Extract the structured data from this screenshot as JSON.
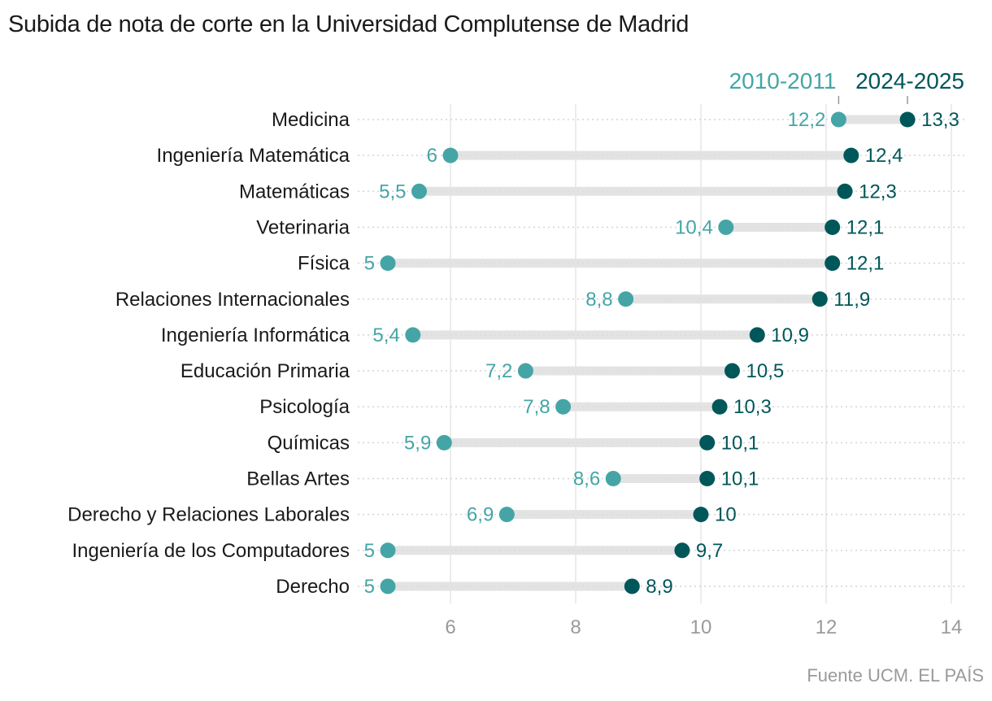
{
  "title": "Subida de nota de corte en la Universidad Complutense de Madrid",
  "source": "Fuente UCM. EL PAÍS",
  "colors": {
    "old": "#45a5a6",
    "new": "#00575a",
    "range": "#e3e3e3",
    "grid": "#e6e6e6",
    "dots": "#d6d6d6",
    "tick": "#9a9a9a"
  },
  "chart_data": {
    "type": "dumbbell",
    "title": "Subida de nota de corte en la Universidad Complutense de Madrid",
    "xlabel": "",
    "ylabel": "",
    "xlim": [
      4.6,
      14.2
    ],
    "xticks": [
      6,
      8,
      10,
      12,
      14
    ],
    "xtick_labels": [
      "6",
      "8",
      "10",
      "12",
      "14"
    ],
    "grid": true,
    "legend_position": "top-right",
    "series": [
      {
        "name": "2010-2011",
        "color": "#45a5a6"
      },
      {
        "name": "2024-2025",
        "color": "#00575a"
      }
    ],
    "categories": [
      "Medicina",
      "Ingeniería Matemática",
      "Matemáticas",
      "Veterinaria",
      "Física",
      "Relaciones Internacionales",
      "Ingeniería Informática",
      "Educación Primaria",
      "Psicología",
      "Químicas",
      "Bellas Artes",
      "Derecho y Relaciones Laborales",
      "Ingeniería de los Computadores",
      "Derecho"
    ],
    "values_2010_2011": [
      12.2,
      6,
      5.5,
      10.4,
      5,
      8.8,
      5.4,
      7.2,
      7.8,
      5.9,
      8.6,
      6.9,
      5,
      5
    ],
    "values_2024_2025": [
      13.3,
      12.4,
      12.3,
      12.1,
      12.1,
      11.9,
      10.9,
      10.5,
      10.3,
      10.1,
      10.1,
      10,
      9.7,
      8.9
    ],
    "labels_2010_2011": [
      "12,2",
      "6",
      "5,5",
      "10,4",
      "5",
      "8,8",
      "5,4",
      "7,2",
      "7,8",
      "5,9",
      "8,6",
      "6,9",
      "5",
      "5"
    ],
    "labels_2024_2025": [
      "13,3",
      "12,4",
      "12,3",
      "12,1",
      "12,1",
      "11,9",
      "10,9",
      "10,5",
      "10,3",
      "10,1",
      "10,1",
      "10",
      "9,7",
      "8,9"
    ]
  }
}
